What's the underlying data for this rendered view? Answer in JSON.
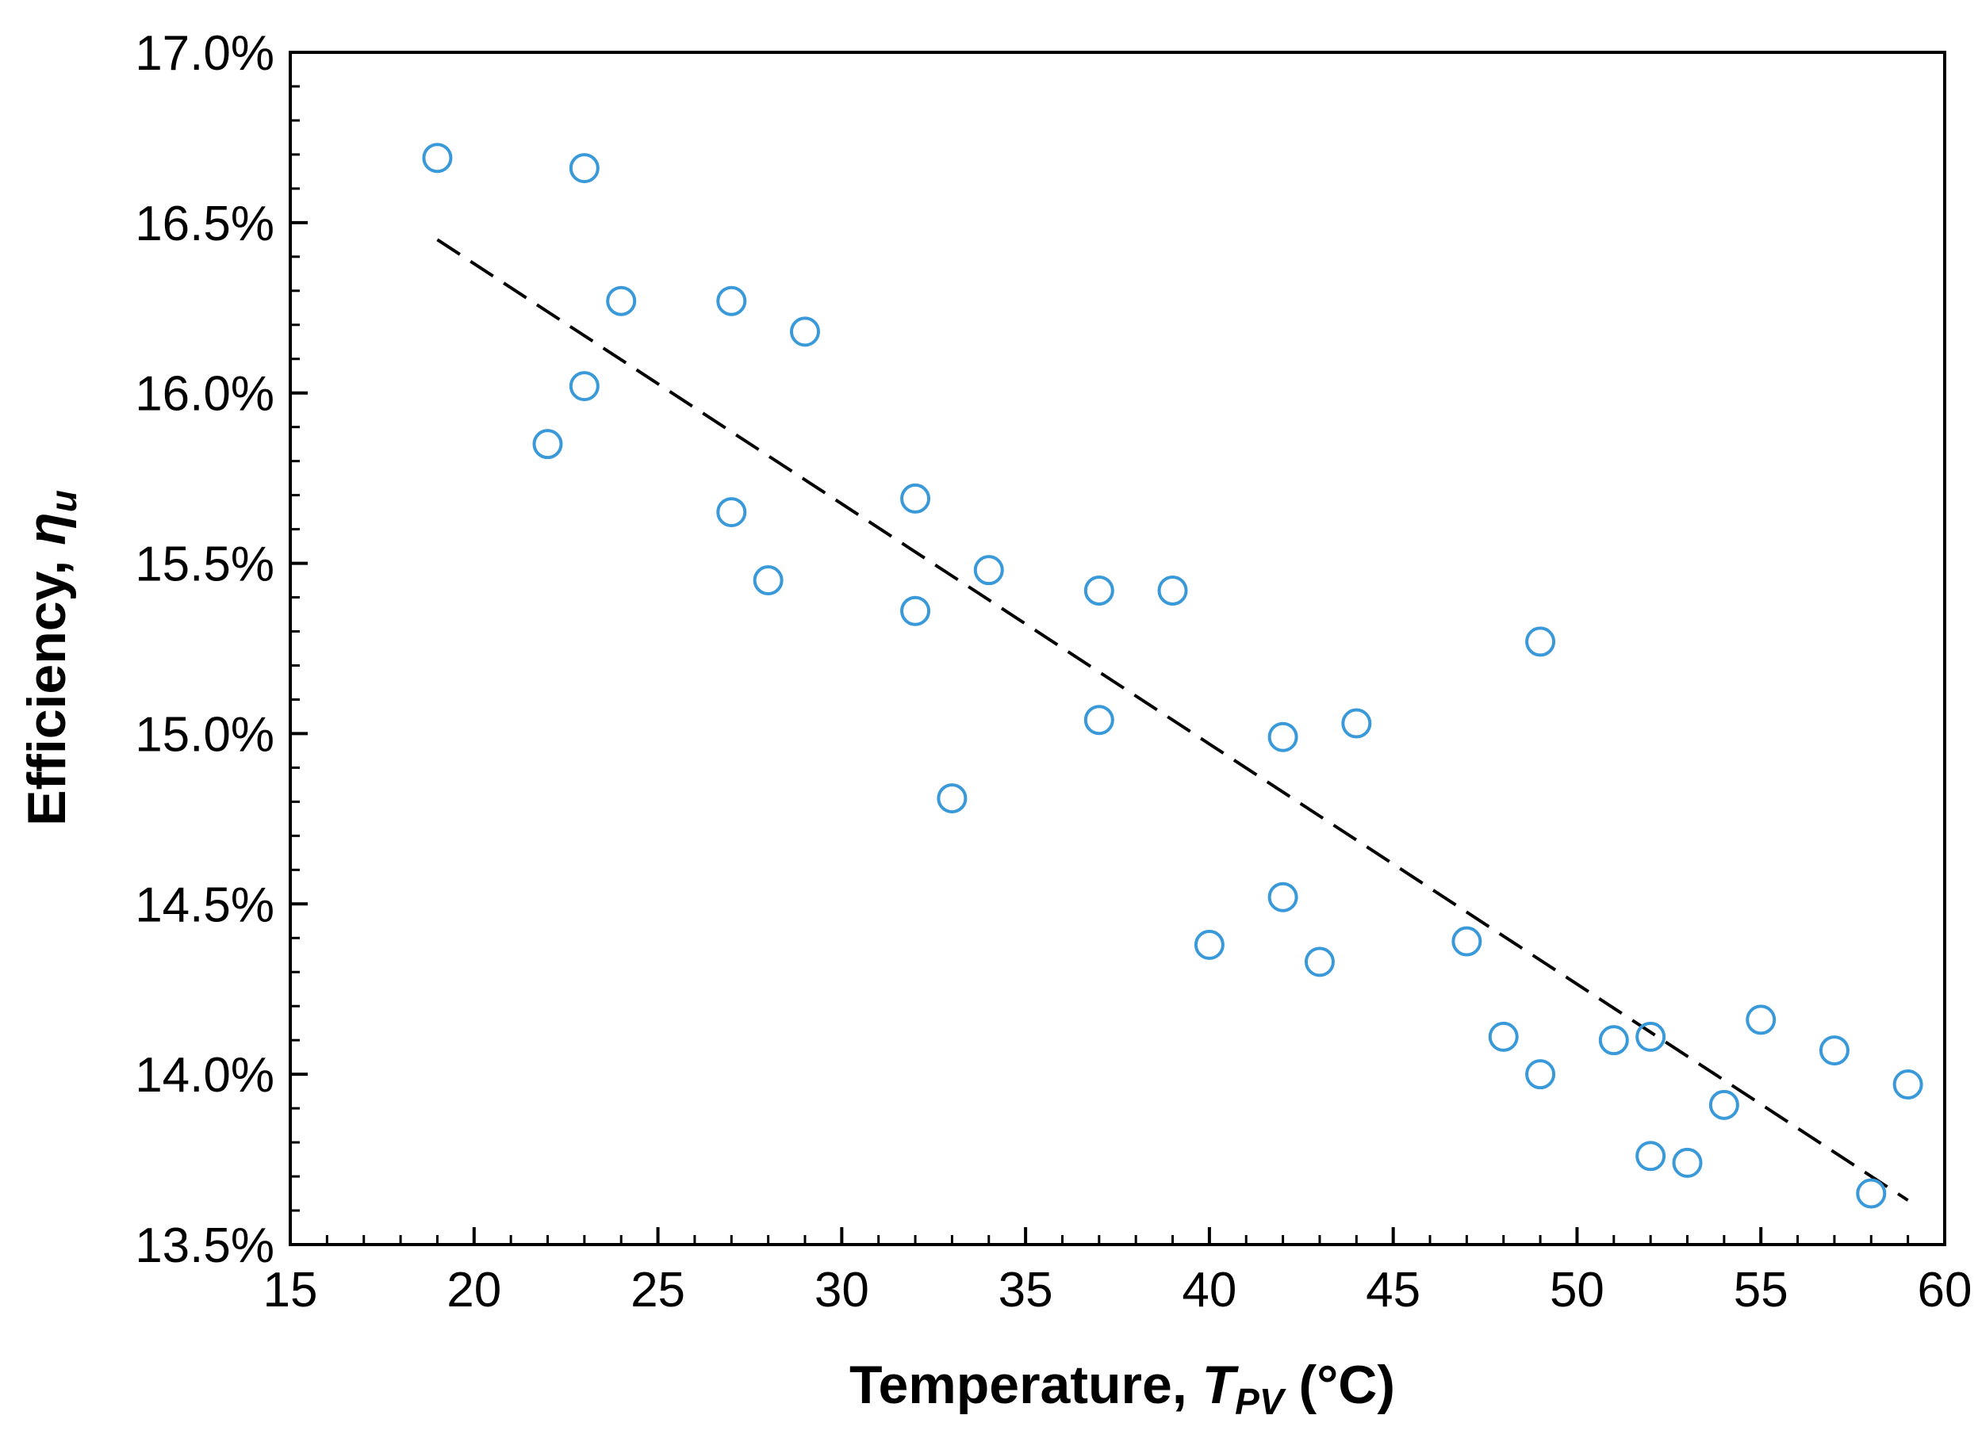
{
  "chart_data": {
    "type": "scatter",
    "title": "",
    "xlabel": {
      "prefix": "Temperature, ",
      "symbol": "T",
      "subscript": "PV",
      "suffix": " (°C)"
    },
    "ylabel": {
      "prefix": "Efficiency, ",
      "symbol": "η",
      "subscript": "u"
    },
    "xlim": [
      15,
      60
    ],
    "ylim": [
      13.5,
      17.0
    ],
    "x_ticks": [
      15,
      20,
      25,
      30,
      35,
      40,
      45,
      50,
      55,
      60
    ],
    "x_tick_labels": [
      "15",
      "20",
      "25",
      "30",
      "35",
      "40",
      "45",
      "50",
      "55",
      "60"
    ],
    "y_ticks": [
      13.5,
      14.0,
      14.5,
      15.0,
      15.5,
      16.0,
      16.5,
      17.0
    ],
    "y_tick_labels": [
      "13.5%",
      "14.0%",
      "14.5%",
      "15.0%",
      "15.5%",
      "16.0%",
      "16.5%",
      "17.0%"
    ],
    "grid": false,
    "marker_color": "#3a9ad9",
    "trend_color": "#000000",
    "points": [
      {
        "x": 19,
        "y": 16.69
      },
      {
        "x": 23,
        "y": 16.66
      },
      {
        "x": 24,
        "y": 16.27
      },
      {
        "x": 23,
        "y": 16.02
      },
      {
        "x": 22,
        "y": 15.85
      },
      {
        "x": 27,
        "y": 16.27
      },
      {
        "x": 29,
        "y": 16.18
      },
      {
        "x": 27,
        "y": 15.65
      },
      {
        "x": 28,
        "y": 15.45
      },
      {
        "x": 32,
        "y": 15.69
      },
      {
        "x": 32,
        "y": 15.36
      },
      {
        "x": 33,
        "y": 14.81
      },
      {
        "x": 34,
        "y": 15.48
      },
      {
        "x": 37,
        "y": 15.42
      },
      {
        "x": 39,
        "y": 15.42
      },
      {
        "x": 37,
        "y": 15.04
      },
      {
        "x": 40,
        "y": 14.38
      },
      {
        "x": 42,
        "y": 14.99
      },
      {
        "x": 42,
        "y": 14.52
      },
      {
        "x": 43,
        "y": 14.33
      },
      {
        "x": 44,
        "y": 15.03
      },
      {
        "x": 47,
        "y": 14.39
      },
      {
        "x": 48,
        "y": 14.11
      },
      {
        "x": 49,
        "y": 15.27
      },
      {
        "x": 49,
        "y": 14.0
      },
      {
        "x": 51,
        "y": 14.1
      },
      {
        "x": 52,
        "y": 14.11
      },
      {
        "x": 52,
        "y": 13.76
      },
      {
        "x": 53,
        "y": 13.74
      },
      {
        "x": 54,
        "y": 13.91
      },
      {
        "x": 55,
        "y": 14.16
      },
      {
        "x": 57,
        "y": 14.07
      },
      {
        "x": 58,
        "y": 13.65
      },
      {
        "x": 59,
        "y": 13.97
      }
    ],
    "trendline": [
      {
        "x": 19,
        "y": 16.45
      },
      {
        "x": 59,
        "y": 13.63
      }
    ]
  }
}
